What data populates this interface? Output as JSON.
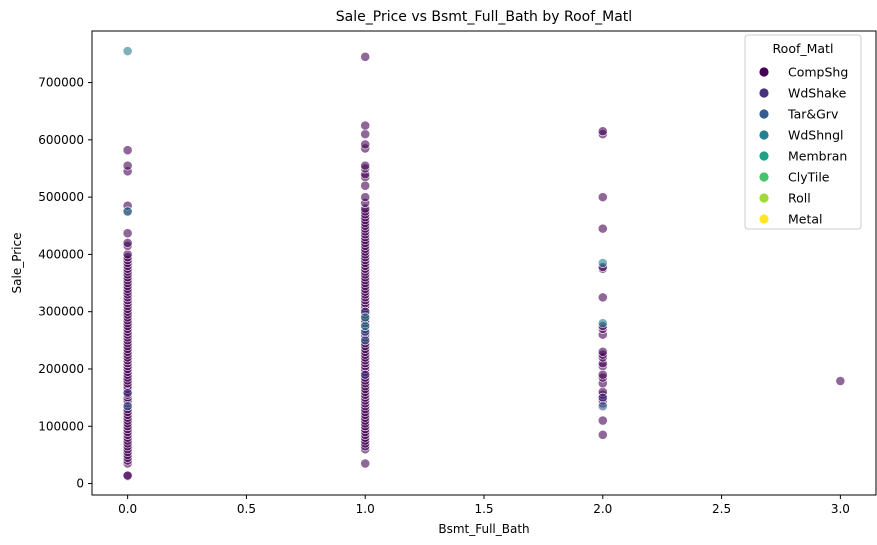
{
  "chart_data": {
    "type": "scatter",
    "title": "Sale_Price vs Bsmt_Full_Bath by Roof_Matl",
    "xlabel": "Bsmt_Full_Bath",
    "ylabel": "Sale_Price",
    "xlim": [
      -0.15,
      3.15
    ],
    "ylim": [
      -20000,
      790000
    ],
    "xticks": [
      0.0,
      0.5,
      1.0,
      1.5,
      2.0,
      2.5,
      3.0
    ],
    "xtick_labels": [
      "0.0",
      "0.5",
      "1.0",
      "1.5",
      "2.0",
      "2.5",
      "3.0"
    ],
    "yticks": [
      0,
      100000,
      200000,
      300000,
      400000,
      500000,
      600000,
      700000
    ],
    "ytick_labels": [
      "0",
      "100000",
      "200000",
      "300000",
      "400000",
      "500000",
      "600000",
      "700000"
    ],
    "grid": false,
    "legend": {
      "title": "Roof_Matl",
      "placement": "top-right",
      "entries": [
        "CompShg",
        "WdShake",
        "Tar&Grv",
        "WdShngl",
        "Membran",
        "ClyTile",
        "Roll",
        "Metal"
      ]
    },
    "series": [
      {
        "name": "CompShg",
        "color": "#440154",
        "points": [
          [
            0,
            13000
          ],
          [
            0,
            14000
          ],
          [
            0,
            35000
          ],
          [
            0,
            40000
          ],
          [
            0,
            45000
          ],
          [
            0,
            50000
          ],
          [
            0,
            55000
          ],
          [
            0,
            60000
          ],
          [
            0,
            65000
          ],
          [
            0,
            70000
          ],
          [
            0,
            75000
          ],
          [
            0,
            80000
          ],
          [
            0,
            85000
          ],
          [
            0,
            90000
          ],
          [
            0,
            95000
          ],
          [
            0,
            100000
          ],
          [
            0,
            105000
          ],
          [
            0,
            110000
          ],
          [
            0,
            115000
          ],
          [
            0,
            120000
          ],
          [
            0,
            125000
          ],
          [
            0,
            130000
          ],
          [
            0,
            135000
          ],
          [
            0,
            140000
          ],
          [
            0,
            145000
          ],
          [
            0,
            150000
          ],
          [
            0,
            155000
          ],
          [
            0,
            160000
          ],
          [
            0,
            165000
          ],
          [
            0,
            170000
          ],
          [
            0,
            175000
          ],
          [
            0,
            180000
          ],
          [
            0,
            185000
          ],
          [
            0,
            190000
          ],
          [
            0,
            195000
          ],
          [
            0,
            200000
          ],
          [
            0,
            205000
          ],
          [
            0,
            210000
          ],
          [
            0,
            215000
          ],
          [
            0,
            220000
          ],
          [
            0,
            225000
          ],
          [
            0,
            230000
          ],
          [
            0,
            235000
          ],
          [
            0,
            240000
          ],
          [
            0,
            245000
          ],
          [
            0,
            250000
          ],
          [
            0,
            255000
          ],
          [
            0,
            260000
          ],
          [
            0,
            265000
          ],
          [
            0,
            270000
          ],
          [
            0,
            275000
          ],
          [
            0,
            280000
          ],
          [
            0,
            285000
          ],
          [
            0,
            290000
          ],
          [
            0,
            295000
          ],
          [
            0,
            300000
          ],
          [
            0,
            305000
          ],
          [
            0,
            310000
          ],
          [
            0,
            315000
          ],
          [
            0,
            320000
          ],
          [
            0,
            325000
          ],
          [
            0,
            330000
          ],
          [
            0,
            335000
          ],
          [
            0,
            340000
          ],
          [
            0,
            345000
          ],
          [
            0,
            350000
          ],
          [
            0,
            355000
          ],
          [
            0,
            360000
          ],
          [
            0,
            365000
          ],
          [
            0,
            370000
          ],
          [
            0,
            375000
          ],
          [
            0,
            380000
          ],
          [
            0,
            385000
          ],
          [
            0,
            390000
          ],
          [
            0,
            395000
          ],
          [
            0,
            400000
          ],
          [
            0,
            415000
          ],
          [
            0,
            420000
          ],
          [
            0,
            437000
          ],
          [
            0,
            475000
          ],
          [
            0,
            485000
          ],
          [
            0,
            545000
          ],
          [
            0,
            555000
          ],
          [
            0,
            582000
          ],
          [
            1,
            35000
          ],
          [
            1,
            60000
          ],
          [
            1,
            65000
          ],
          [
            1,
            70000
          ],
          [
            1,
            75000
          ],
          [
            1,
            80000
          ],
          [
            1,
            85000
          ],
          [
            1,
            90000
          ],
          [
            1,
            95000
          ],
          [
            1,
            100000
          ],
          [
            1,
            105000
          ],
          [
            1,
            110000
          ],
          [
            1,
            115000
          ],
          [
            1,
            120000
          ],
          [
            1,
            125000
          ],
          [
            1,
            130000
          ],
          [
            1,
            135000
          ],
          [
            1,
            140000
          ],
          [
            1,
            145000
          ],
          [
            1,
            150000
          ],
          [
            1,
            155000
          ],
          [
            1,
            160000
          ],
          [
            1,
            165000
          ],
          [
            1,
            170000
          ],
          [
            1,
            175000
          ],
          [
            1,
            180000
          ],
          [
            1,
            185000
          ],
          [
            1,
            190000
          ],
          [
            1,
            195000
          ],
          [
            1,
            200000
          ],
          [
            1,
            205000
          ],
          [
            1,
            210000
          ],
          [
            1,
            215000
          ],
          [
            1,
            220000
          ],
          [
            1,
            225000
          ],
          [
            1,
            230000
          ],
          [
            1,
            235000
          ],
          [
            1,
            240000
          ],
          [
            1,
            245000
          ],
          [
            1,
            250000
          ],
          [
            1,
            255000
          ],
          [
            1,
            260000
          ],
          [
            1,
            265000
          ],
          [
            1,
            270000
          ],
          [
            1,
            275000
          ],
          [
            1,
            280000
          ],
          [
            1,
            285000
          ],
          [
            1,
            290000
          ],
          [
            1,
            295000
          ],
          [
            1,
            300000
          ],
          [
            1,
            305000
          ],
          [
            1,
            310000
          ],
          [
            1,
            315000
          ],
          [
            1,
            320000
          ],
          [
            1,
            325000
          ],
          [
            1,
            330000
          ],
          [
            1,
            335000
          ],
          [
            1,
            340000
          ],
          [
            1,
            345000
          ],
          [
            1,
            350000
          ],
          [
            1,
            355000
          ],
          [
            1,
            360000
          ],
          [
            1,
            365000
          ],
          [
            1,
            370000
          ],
          [
            1,
            375000
          ],
          [
            1,
            380000
          ],
          [
            1,
            385000
          ],
          [
            1,
            390000
          ],
          [
            1,
            395000
          ],
          [
            1,
            400000
          ],
          [
            1,
            405000
          ],
          [
            1,
            410000
          ],
          [
            1,
            415000
          ],
          [
            1,
            420000
          ],
          [
            1,
            425000
          ],
          [
            1,
            430000
          ],
          [
            1,
            435000
          ],
          [
            1,
            440000
          ],
          [
            1,
            445000
          ],
          [
            1,
            450000
          ],
          [
            1,
            455000
          ],
          [
            1,
            460000
          ],
          [
            1,
            465000
          ],
          [
            1,
            470000
          ],
          [
            1,
            475000
          ],
          [
            1,
            480000
          ],
          [
            1,
            490000
          ],
          [
            1,
            500000
          ],
          [
            1,
            520000
          ],
          [
            1,
            535000
          ],
          [
            1,
            540000
          ],
          [
            1,
            550000
          ],
          [
            1,
            555000
          ],
          [
            1,
            585000
          ],
          [
            1,
            592000
          ],
          [
            1,
            610000
          ],
          [
            1,
            625000
          ],
          [
            1,
            745000
          ],
          [
            2,
            85000
          ],
          [
            2,
            110000
          ],
          [
            2,
            140000
          ],
          [
            2,
            145000
          ],
          [
            2,
            150000
          ],
          [
            2,
            155000
          ],
          [
            2,
            160000
          ],
          [
            2,
            175000
          ],
          [
            2,
            185000
          ],
          [
            2,
            190000
          ],
          [
            2,
            205000
          ],
          [
            2,
            210000
          ],
          [
            2,
            220000
          ],
          [
            2,
            225000
          ],
          [
            2,
            230000
          ],
          [
            2,
            260000
          ],
          [
            2,
            270000
          ],
          [
            2,
            275000
          ],
          [
            2,
            325000
          ],
          [
            2,
            375000
          ],
          [
            2,
            378000
          ],
          [
            2,
            445000
          ],
          [
            2,
            500000
          ],
          [
            2,
            610000
          ],
          [
            2,
            615000
          ],
          [
            3,
            179000
          ]
        ]
      },
      {
        "name": "WdShake",
        "color": "#46327e",
        "points": [
          [
            0,
            158000
          ],
          [
            1,
            190000
          ],
          [
            1,
            300000
          ],
          [
            2,
            150000
          ]
        ]
      },
      {
        "name": "Tar&Grv",
        "color": "#365c8d",
        "points": [
          [
            0,
            135000
          ],
          [
            1,
            250000
          ],
          [
            1,
            265000
          ],
          [
            2,
            135000
          ]
        ]
      },
      {
        "name": "WdShngl",
        "color": "#277f8e",
        "points": [
          [
            0,
            755000
          ],
          [
            0,
            475000
          ],
          [
            1,
            275000
          ],
          [
            1,
            290000
          ],
          [
            2,
            385000
          ],
          [
            2,
            280000
          ]
        ]
      },
      {
        "name": "Membran",
        "color": "#1fa187",
        "points": []
      },
      {
        "name": "ClyTile",
        "color": "#4ac16d",
        "points": []
      },
      {
        "name": "Roll",
        "color": "#a0da39",
        "points": []
      },
      {
        "name": "Metal",
        "color": "#fde725",
        "points": []
      }
    ]
  }
}
